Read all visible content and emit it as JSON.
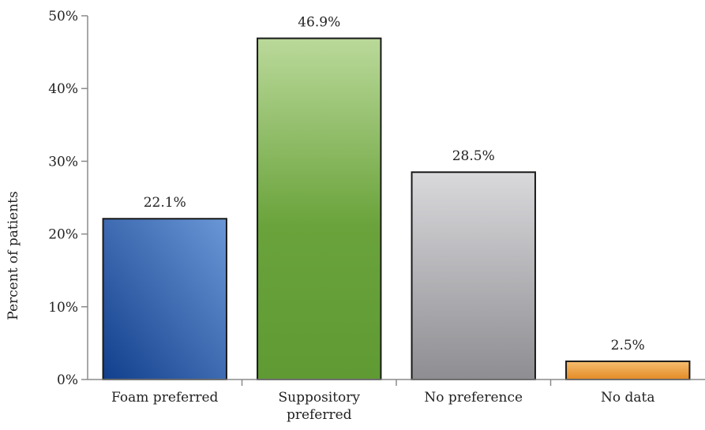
{
  "chart_data": {
    "type": "bar",
    "title": "",
    "xlabel": "",
    "ylabel": "Percent of patients",
    "ylim": [
      0,
      50
    ],
    "yticks": [
      0,
      10,
      20,
      30,
      40,
      50
    ],
    "ytick_labels": [
      "0%",
      "10%",
      "20%",
      "30%",
      "40%",
      "50%"
    ],
    "categories": [
      [
        "Foam preferred"
      ],
      [
        "Suppository",
        "preferred"
      ],
      [
        "No preference"
      ],
      [
        "No data"
      ]
    ],
    "values": [
      22.1,
      46.9,
      28.5,
      2.5
    ],
    "value_labels": [
      "22.1%",
      "46.9%",
      "28.5%",
      "2.5%"
    ],
    "colors": [
      "#3c67ad",
      "#7fb350",
      "#b4b4b8",
      "#f0a040"
    ],
    "grid": false,
    "legend": "none"
  }
}
